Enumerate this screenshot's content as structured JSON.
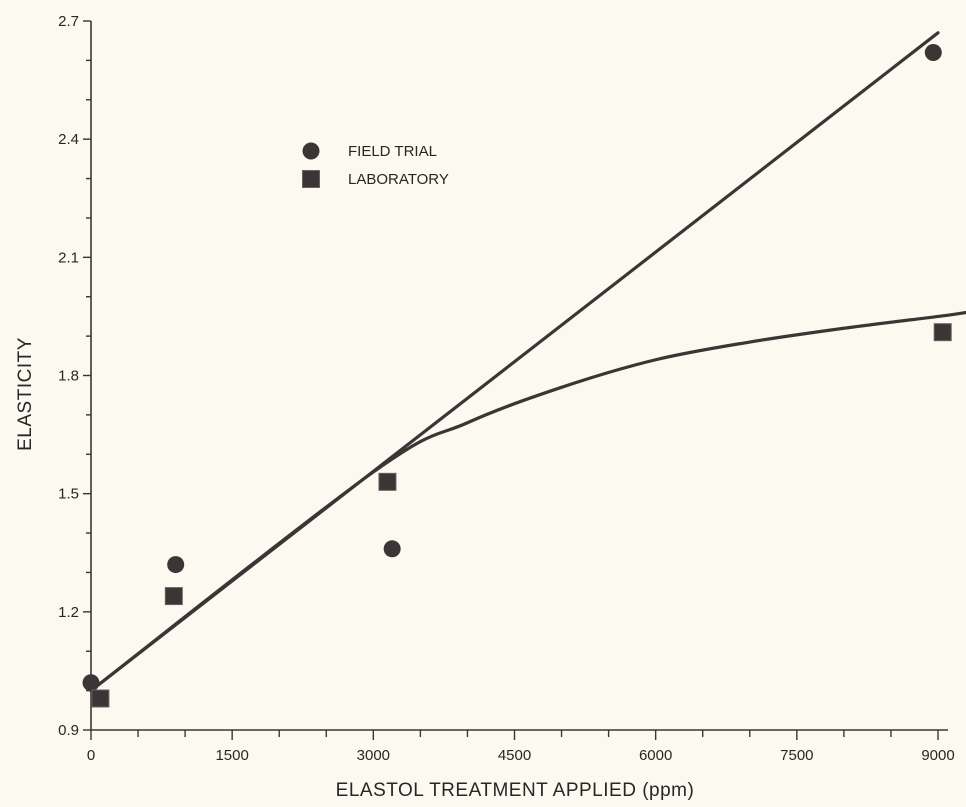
{
  "chart_data": {
    "type": "scatter",
    "title": "",
    "xlabel": "ELASTOL TREATMENT APPLIED (ppm)",
    "ylabel": "ELASTICITY",
    "xlim": [
      0,
      9000
    ],
    "ylim": [
      0.9,
      2.7
    ],
    "x_ticks": [
      0,
      1500,
      3000,
      4500,
      6000,
      7500,
      9000
    ],
    "x_tick_labels": [
      "0",
      "1500",
      "3000",
      "4500",
      "6000",
      "7500",
      "9000"
    ],
    "y_ticks": [
      0.9,
      1.2,
      1.5,
      1.8,
      2.1,
      2.4,
      2.7
    ],
    "y_tick_labels": [
      "0.9",
      "1.2",
      "1.5",
      "1.8",
      "2.1",
      "2.4",
      "2.7"
    ],
    "grid": false,
    "legend_position": "upper-left",
    "series": [
      {
        "name": "FIELD TRIAL",
        "marker": "circle",
        "color": "#3d3535",
        "points": [
          [
            0,
            1.02
          ],
          [
            900,
            1.32
          ],
          [
            3200,
            1.36
          ],
          [
            8950,
            2.62
          ]
        ]
      },
      {
        "name": "LABORATORY",
        "marker": "square",
        "color": "#3d3535",
        "points": [
          [
            100,
            0.98
          ],
          [
            880,
            1.24
          ],
          [
            3150,
            1.53
          ],
          [
            9050,
            1.91
          ]
        ]
      }
    ],
    "fit_lines": [
      {
        "name": "field-trial-fit",
        "type": "linear",
        "points": [
          [
            0,
            1.0
          ],
          [
            9000,
            2.67
          ]
        ]
      },
      {
        "name": "laboratory-fit",
        "type": "curve",
        "points": [
          [
            0,
            1.0
          ],
          [
            3000,
            1.555
          ],
          [
            4000,
            1.68
          ],
          [
            5000,
            1.77
          ],
          [
            6000,
            1.84
          ],
          [
            7000,
            1.885
          ],
          [
            8000,
            1.92
          ],
          [
            9000,
            1.95
          ],
          [
            9300,
            1.96
          ]
        ]
      }
    ]
  }
}
